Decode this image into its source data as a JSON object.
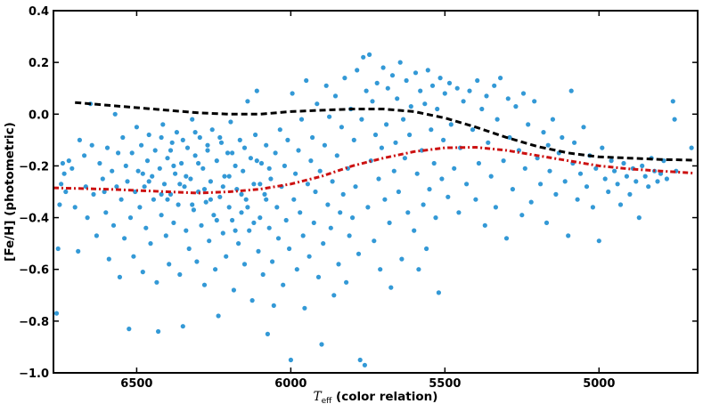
{
  "chart_data": {
    "type": "scatter",
    "title": "",
    "xlabel_symbol": "T",
    "xlabel_sub": "eff",
    "xlabel_rest": " (color relation)",
    "ylabel": "[Fe/H] (photometric)",
    "xlim": [
      6770,
      4680
    ],
    "ylim": [
      -1.0,
      0.4
    ],
    "x_ticks": [
      6500,
      6000,
      5500,
      5000
    ],
    "x_tick_labels": [
      "6500",
      "6000",
      "5500",
      "5000"
    ],
    "y_ticks": [
      0.4,
      0.2,
      0.0,
      -0.2,
      -0.4,
      -0.6,
      -0.8,
      -1.0
    ],
    "y_tick_labels": [
      "0.4",
      "0.2",
      "0.0",
      "−0.2",
      "−0.4",
      "−0.6",
      "−0.8",
      "−1.0"
    ],
    "grid": false,
    "legend": "none",
    "colors": {
      "points": "#3399d6",
      "black_curve": "#000000",
      "red_curve": "#cc1111"
    },
    "points": [
      [
        6760,
        -0.77
      ],
      [
        6755,
        -0.52
      ],
      [
        6750,
        -0.35
      ],
      [
        6745,
        -0.27
      ],
      [
        6740,
        -0.19
      ],
      [
        6735,
        -0.23
      ],
      [
        6730,
        -0.3
      ],
      [
        6720,
        -0.18
      ],
      [
        6710,
        -0.21
      ],
      [
        6700,
        -0.36
      ],
      [
        6690,
        -0.53
      ],
      [
        6685,
        -0.1
      ],
      [
        6670,
        -0.16
      ],
      [
        6665,
        -0.28
      ],
      [
        6660,
        -0.4
      ],
      [
        6650,
        0.04
      ],
      [
        6645,
        -0.12
      ],
      [
        6640,
        -0.31
      ],
      [
        6630,
        -0.47
      ],
      [
        6620,
        -0.19
      ],
      [
        6610,
        -0.25
      ],
      [
        6605,
        -0.3
      ],
      [
        6600,
        -0.38
      ],
      [
        6595,
        -0.13
      ],
      [
        6590,
        -0.56
      ],
      [
        6580,
        -0.22
      ],
      [
        6575,
        -0.43
      ],
      [
        6570,
        0.0
      ],
      [
        6565,
        -0.28
      ],
      [
        6560,
        -0.15
      ],
      [
        6555,
        -0.63
      ],
      [
        6550,
        -0.33
      ],
      [
        6545,
        -0.09
      ],
      [
        6540,
        -0.48
      ],
      [
        6535,
        -0.2
      ],
      [
        6530,
        -0.26
      ],
      [
        6525,
        -0.83
      ],
      [
        6520,
        -0.4
      ],
      [
        6515,
        -0.15
      ],
      [
        6510,
        -0.55
      ],
      [
        6505,
        -0.3
      ],
      [
        6500,
        -0.05
      ],
      [
        6495,
        -0.22
      ],
      [
        6490,
        -0.36
      ],
      [
        6485,
        -0.12
      ],
      [
        6480,
        -0.61
      ],
      [
        6475,
        -0.28
      ],
      [
        6470,
        -0.44
      ],
      [
        6465,
        -0.18
      ],
      [
        6460,
        -0.08
      ],
      [
        6455,
        -0.5
      ],
      [
        6450,
        -0.24
      ],
      [
        6445,
        -0.33
      ],
      [
        6440,
        -0.14
      ],
      [
        6435,
        -0.65
      ],
      [
        6430,
        -0.84
      ],
      [
        6425,
        -0.21
      ],
      [
        6420,
        -0.39
      ],
      [
        6415,
        -0.04
      ],
      [
        6410,
        -0.27
      ],
      [
        6405,
        -0.47
      ],
      [
        6400,
        -0.17
      ],
      [
        6395,
        -0.58
      ],
      [
        6390,
        -0.31
      ],
      [
        6385,
        -0.11
      ],
      [
        6380,
        -0.42
      ],
      [
        6375,
        -0.23
      ],
      [
        6370,
        -0.07
      ],
      [
        6365,
        -0.35
      ],
      [
        6360,
        -0.62
      ],
      [
        6355,
        -0.19
      ],
      [
        6350,
        -0.82
      ],
      [
        6345,
        -0.28
      ],
      [
        6340,
        -0.45
      ],
      [
        6335,
        -0.13
      ],
      [
        6330,
        -0.52
      ],
      [
        6325,
        -0.25
      ],
      [
        6320,
        -0.02
      ],
      [
        6315,
        -0.37
      ],
      [
        6310,
        -0.16
      ],
      [
        6305,
        -0.57
      ],
      [
        6300,
        -0.3
      ],
      [
        6295,
        -0.09
      ],
      [
        6290,
        -0.43
      ],
      [
        6285,
        -0.21
      ],
      [
        6280,
        -0.66
      ],
      [
        6275,
        -0.34
      ],
      [
        6270,
        -0.14
      ],
      [
        6265,
        -0.49
      ],
      [
        6260,
        -0.26
      ],
      [
        6255,
        -0.06
      ],
      [
        6250,
        -0.39
      ],
      [
        6245,
        -0.6
      ],
      [
        6240,
        -0.18
      ],
      [
        6235,
        -0.78
      ],
      [
        6230,
        -0.32
      ],
      [
        6225,
        -0.11
      ],
      [
        6220,
        -0.46
      ],
      [
        6215,
        -0.24
      ],
      [
        6210,
        -0.55
      ],
      [
        6205,
        -0.15
      ],
      [
        6200,
        -0.36
      ],
      [
        6195,
        -0.03
      ],
      [
        6190,
        -0.41
      ],
      [
        6185,
        -0.68
      ],
      [
        6180,
        -0.2
      ],
      [
        6175,
        -0.29
      ],
      [
        6170,
        -0.5
      ],
      [
        6165,
        -0.1
      ],
      [
        6160,
        -0.38
      ],
      [
        6155,
        -0.22
      ],
      [
        6150,
        -0.58
      ],
      [
        6145,
        -0.33
      ],
      [
        6140,
        0.05
      ],
      [
        6135,
        -0.45
      ],
      [
        6130,
        -0.17
      ],
      [
        6125,
        -0.72
      ],
      [
        6120,
        -0.27
      ],
      [
        6115,
        -0.08
      ],
      [
        6110,
        0.09
      ],
      [
        6105,
        -0.53
      ],
      [
        6100,
        -0.4
      ],
      [
        6095,
        -0.19
      ],
      [
        6090,
        -0.62
      ],
      [
        6085,
        -0.31
      ],
      [
        6080,
        -0.12
      ],
      [
        6075,
        -0.85
      ],
      [
        6070,
        -0.44
      ],
      [
        6065,
        -0.25
      ],
      [
        6060,
        -0.57
      ],
      [
        6055,
        -0.74
      ],
      [
        6050,
        -0.15
      ],
      [
        6045,
        -0.36
      ],
      [
        6040,
        -0.48
      ],
      [
        6035,
        -0.06
      ],
      [
        6030,
        -0.28
      ],
      [
        6025,
        -0.66
      ],
      [
        6020,
        -0.2
      ],
      [
        6015,
        -0.41
      ],
      [
        6010,
        -0.1
      ],
      [
        6005,
        -0.52
      ],
      [
        6000,
        -0.95
      ],
      [
        5995,
        0.08
      ],
      [
        5990,
        -0.33
      ],
      [
        5985,
        -0.23
      ],
      [
        5980,
        -0.6
      ],
      [
        5975,
        -0.14
      ],
      [
        5970,
        -0.38
      ],
      [
        5965,
        -0.02
      ],
      [
        5960,
        -0.47
      ],
      [
        5955,
        -0.75
      ],
      [
        5950,
        0.13
      ],
      [
        5945,
        -0.27
      ],
      [
        5940,
        -0.55
      ],
      [
        5935,
        -0.18
      ],
      [
        5930,
        -0.09
      ],
      [
        5925,
        -0.42
      ],
      [
        5920,
        -0.3
      ],
      [
        5915,
        0.04
      ],
      [
        5910,
        -0.63
      ],
      [
        5905,
        -0.22
      ],
      [
        5900,
        -0.89
      ],
      [
        5895,
        -0.5
      ],
      [
        5890,
        -0.12
      ],
      [
        5885,
        0.11
      ],
      [
        5880,
        -0.35
      ],
      [
        5875,
        -0.01
      ],
      [
        5870,
        -0.44
      ],
      [
        5865,
        -0.26
      ],
      [
        5860,
        -0.7
      ],
      [
        5855,
        0.07
      ],
      [
        5850,
        -0.16
      ],
      [
        5845,
        -0.58
      ],
      [
        5840,
        -0.38
      ],
      [
        5835,
        -0.05
      ],
      [
        5830,
        -0.31
      ],
      [
        5825,
        0.14
      ],
      [
        5820,
        -0.65
      ],
      [
        5815,
        -0.21
      ],
      [
        5810,
        -0.47
      ],
      [
        5805,
        0.02
      ],
      [
        5800,
        -0.4
      ],
      [
        5795,
        -0.1
      ],
      [
        5790,
        -0.28
      ],
      [
        5785,
        0.17
      ],
      [
        5780,
        -0.54
      ],
      [
        5775,
        -0.95
      ],
      [
        5770,
        -0.02
      ],
      [
        5765,
        0.22
      ],
      [
        5760,
        -0.97
      ],
      [
        5755,
        0.09
      ],
      [
        5750,
        -0.36
      ],
      [
        5745,
        0.23
      ],
      [
        5740,
        -0.18
      ],
      [
        5735,
        0.05
      ],
      [
        5730,
        -0.49
      ],
      [
        5725,
        -0.08
      ],
      [
        5720,
        0.12
      ],
      [
        5715,
        -0.25
      ],
      [
        5710,
        -0.6
      ],
      [
        5705,
        -0.13
      ],
      [
        5700,
        0.18
      ],
      [
        5695,
        -0.33
      ],
      [
        5690,
        -0.04
      ],
      [
        5685,
        0.1
      ],
      [
        5680,
        -0.42
      ],
      [
        5675,
        -0.67
      ],
      [
        5670,
        0.15
      ],
      [
        5665,
        -0.22
      ],
      [
        5660,
        -0.11
      ],
      [
        5655,
        0.06
      ],
      [
        5650,
        -0.3
      ],
      [
        5645,
        0.2
      ],
      [
        5640,
        -0.56
      ],
      [
        5635,
        -0.02
      ],
      [
        5630,
        -0.17
      ],
      [
        5625,
        0.13
      ],
      [
        5620,
        -0.38
      ],
      [
        5615,
        -0.08
      ],
      [
        5610,
        0.03
      ],
      [
        5600,
        -0.45
      ],
      [
        5595,
        0.16
      ],
      [
        5590,
        -0.23
      ],
      [
        5585,
        -0.6
      ],
      [
        5580,
        0.09
      ],
      [
        5575,
        -0.14
      ],
      [
        5570,
        -0.35
      ],
      [
        5565,
        0.04
      ],
      [
        5560,
        -0.52
      ],
      [
        5555,
        0.17
      ],
      [
        5550,
        -0.29
      ],
      [
        5545,
        -0.06
      ],
      [
        5540,
        0.11
      ],
      [
        5535,
        -0.19
      ],
      [
        5530,
        -0.4
      ],
      [
        5525,
        0.02
      ],
      [
        5520,
        -0.69
      ],
      [
        5515,
        0.14
      ],
      [
        5510,
        -0.25
      ],
      [
        5505,
        -0.1
      ],
      [
        5500,
        0.08
      ],
      [
        5490,
        -0.32
      ],
      [
        5485,
        0.12
      ],
      [
        5480,
        -0.04
      ],
      [
        5470,
        -0.21
      ],
      [
        5460,
        0.1
      ],
      [
        5455,
        -0.38
      ],
      [
        5450,
        -0.13
      ],
      [
        5440,
        0.05
      ],
      [
        5430,
        -0.27
      ],
      [
        5420,
        0.09
      ],
      [
        5410,
        -0.06
      ],
      [
        5400,
        -0.33
      ],
      [
        5395,
        0.13
      ],
      [
        5390,
        -0.19
      ],
      [
        5380,
        0.02
      ],
      [
        5370,
        -0.43
      ],
      [
        5365,
        0.07
      ],
      [
        5360,
        -0.11
      ],
      [
        5350,
        -0.24
      ],
      [
        5340,
        0.11
      ],
      [
        5335,
        -0.36
      ],
      [
        5330,
        -0.02
      ],
      [
        5320,
        0.14
      ],
      [
        5310,
        -0.18
      ],
      [
        5300,
        -0.48
      ],
      [
        5295,
        0.06
      ],
      [
        5290,
        -0.09
      ],
      [
        5280,
        -0.29
      ],
      [
        5270,
        0.03
      ],
      [
        5260,
        -0.14
      ],
      [
        5250,
        -0.39
      ],
      [
        5245,
        0.08
      ],
      [
        5240,
        -0.21
      ],
      [
        5230,
        -0.04
      ],
      [
        5220,
        -0.34
      ],
      [
        5210,
        0.05
      ],
      [
        5200,
        -0.17
      ],
      [
        5190,
        -0.27
      ],
      [
        5180,
        -0.07
      ],
      [
        5170,
        -0.42
      ],
      [
        5165,
        -0.12
      ],
      [
        5160,
        -0.22
      ],
      [
        5150,
        -0.02
      ],
      [
        5140,
        -0.31
      ],
      [
        5130,
        -0.15
      ],
      [
        5120,
        -0.09
      ],
      [
        5110,
        -0.26
      ],
      [
        5100,
        -0.47
      ],
      [
        5090,
        0.09
      ],
      [
        5085,
        -0.19
      ],
      [
        5080,
        -0.11
      ],
      [
        5070,
        -0.33
      ],
      [
        5060,
        -0.23
      ],
      [
        5050,
        -0.05
      ],
      [
        5040,
        -0.28
      ],
      [
        5030,
        -0.16
      ],
      [
        5020,
        -0.36
      ],
      [
        5010,
        -0.21
      ],
      [
        5000,
        -0.49
      ],
      [
        4990,
        -0.13
      ],
      [
        4980,
        -0.25
      ],
      [
        4970,
        -0.3
      ],
      [
        4960,
        -0.18
      ],
      [
        4950,
        -0.22
      ],
      [
        4940,
        -0.27
      ],
      [
        4930,
        -0.35
      ],
      [
        4920,
        -0.19
      ],
      [
        4910,
        -0.24
      ],
      [
        4900,
        -0.31
      ],
      [
        4890,
        -0.21
      ],
      [
        4880,
        -0.26
      ],
      [
        4870,
        -0.4
      ],
      [
        4860,
        -0.2
      ],
      [
        4850,
        -0.24
      ],
      [
        4840,
        -0.28
      ],
      [
        4830,
        -0.17
      ],
      [
        4820,
        -0.22
      ],
      [
        4810,
        -0.26
      ],
      [
        4800,
        -0.23
      ],
      [
        4790,
        -0.18
      ],
      [
        4780,
        -0.25
      ],
      [
        4760,
        0.05
      ],
      [
        4755,
        -0.02
      ],
      [
        4750,
        -0.22
      ],
      [
        4700,
        -0.13
      ],
      [
        6480,
        -0.23
      ],
      [
        6460,
        -0.26
      ],
      [
        6420,
        -0.31
      ],
      [
        6400,
        -0.33
      ],
      [
        6380,
        -0.2
      ],
      [
        6360,
        -0.27
      ],
      [
        6340,
        -0.24
      ],
      [
        6320,
        -0.35
      ],
      [
        6300,
        -0.19
      ],
      [
        6280,
        -0.29
      ],
      [
        6260,
        -0.33
      ],
      [
        6240,
        -0.41
      ],
      [
        6220,
        -0.28
      ],
      [
        6200,
        -0.24
      ],
      [
        6180,
        -0.45
      ],
      [
        6160,
        -0.31
      ],
      [
        6140,
        -0.36
      ],
      [
        6120,
        -0.42
      ],
      [
        6100,
        -0.27
      ],
      [
        6080,
        -0.33
      ],
      [
        6420,
        -0.09
      ],
      [
        6390,
        -0.14
      ],
      [
        6350,
        -0.1
      ],
      [
        6310,
        -0.07
      ],
      [
        6270,
        -0.12
      ],
      [
        6230,
        -0.09
      ],
      [
        6190,
        -0.15
      ],
      [
        6150,
        -0.13
      ],
      [
        6110,
        -0.18
      ],
      [
        6070,
        -0.21
      ]
    ],
    "black_curve": [
      [
        6700,
        0.045
      ],
      [
        6600,
        0.035
      ],
      [
        6500,
        0.025
      ],
      [
        6400,
        0.015
      ],
      [
        6300,
        0.005
      ],
      [
        6200,
        0.0
      ],
      [
        6100,
        0.0
      ],
      [
        6000,
        0.01
      ],
      [
        5900,
        0.015
      ],
      [
        5800,
        0.02
      ],
      [
        5700,
        0.02
      ],
      [
        5600,
        0.01
      ],
      [
        5500,
        -0.015
      ],
      [
        5400,
        -0.05
      ],
      [
        5300,
        -0.09
      ],
      [
        5200,
        -0.125
      ],
      [
        5100,
        -0.15
      ],
      [
        5000,
        -0.165
      ],
      [
        4900,
        -0.17
      ],
      [
        4800,
        -0.175
      ],
      [
        4690,
        -0.178
      ]
    ],
    "red_curve": [
      [
        6770,
        -0.285
      ],
      [
        6700,
        -0.287
      ],
      [
        6600,
        -0.29
      ],
      [
        6500,
        -0.295
      ],
      [
        6400,
        -0.3
      ],
      [
        6300,
        -0.305
      ],
      [
        6200,
        -0.3
      ],
      [
        6100,
        -0.29
      ],
      [
        6000,
        -0.27
      ],
      [
        5900,
        -0.24
      ],
      [
        5800,
        -0.2
      ],
      [
        5700,
        -0.17
      ],
      [
        5600,
        -0.145
      ],
      [
        5500,
        -0.13
      ],
      [
        5400,
        -0.128
      ],
      [
        5300,
        -0.14
      ],
      [
        5200,
        -0.16
      ],
      [
        5100,
        -0.18
      ],
      [
        5000,
        -0.2
      ],
      [
        4900,
        -0.212
      ],
      [
        4800,
        -0.22
      ],
      [
        4690,
        -0.228
      ]
    ]
  }
}
